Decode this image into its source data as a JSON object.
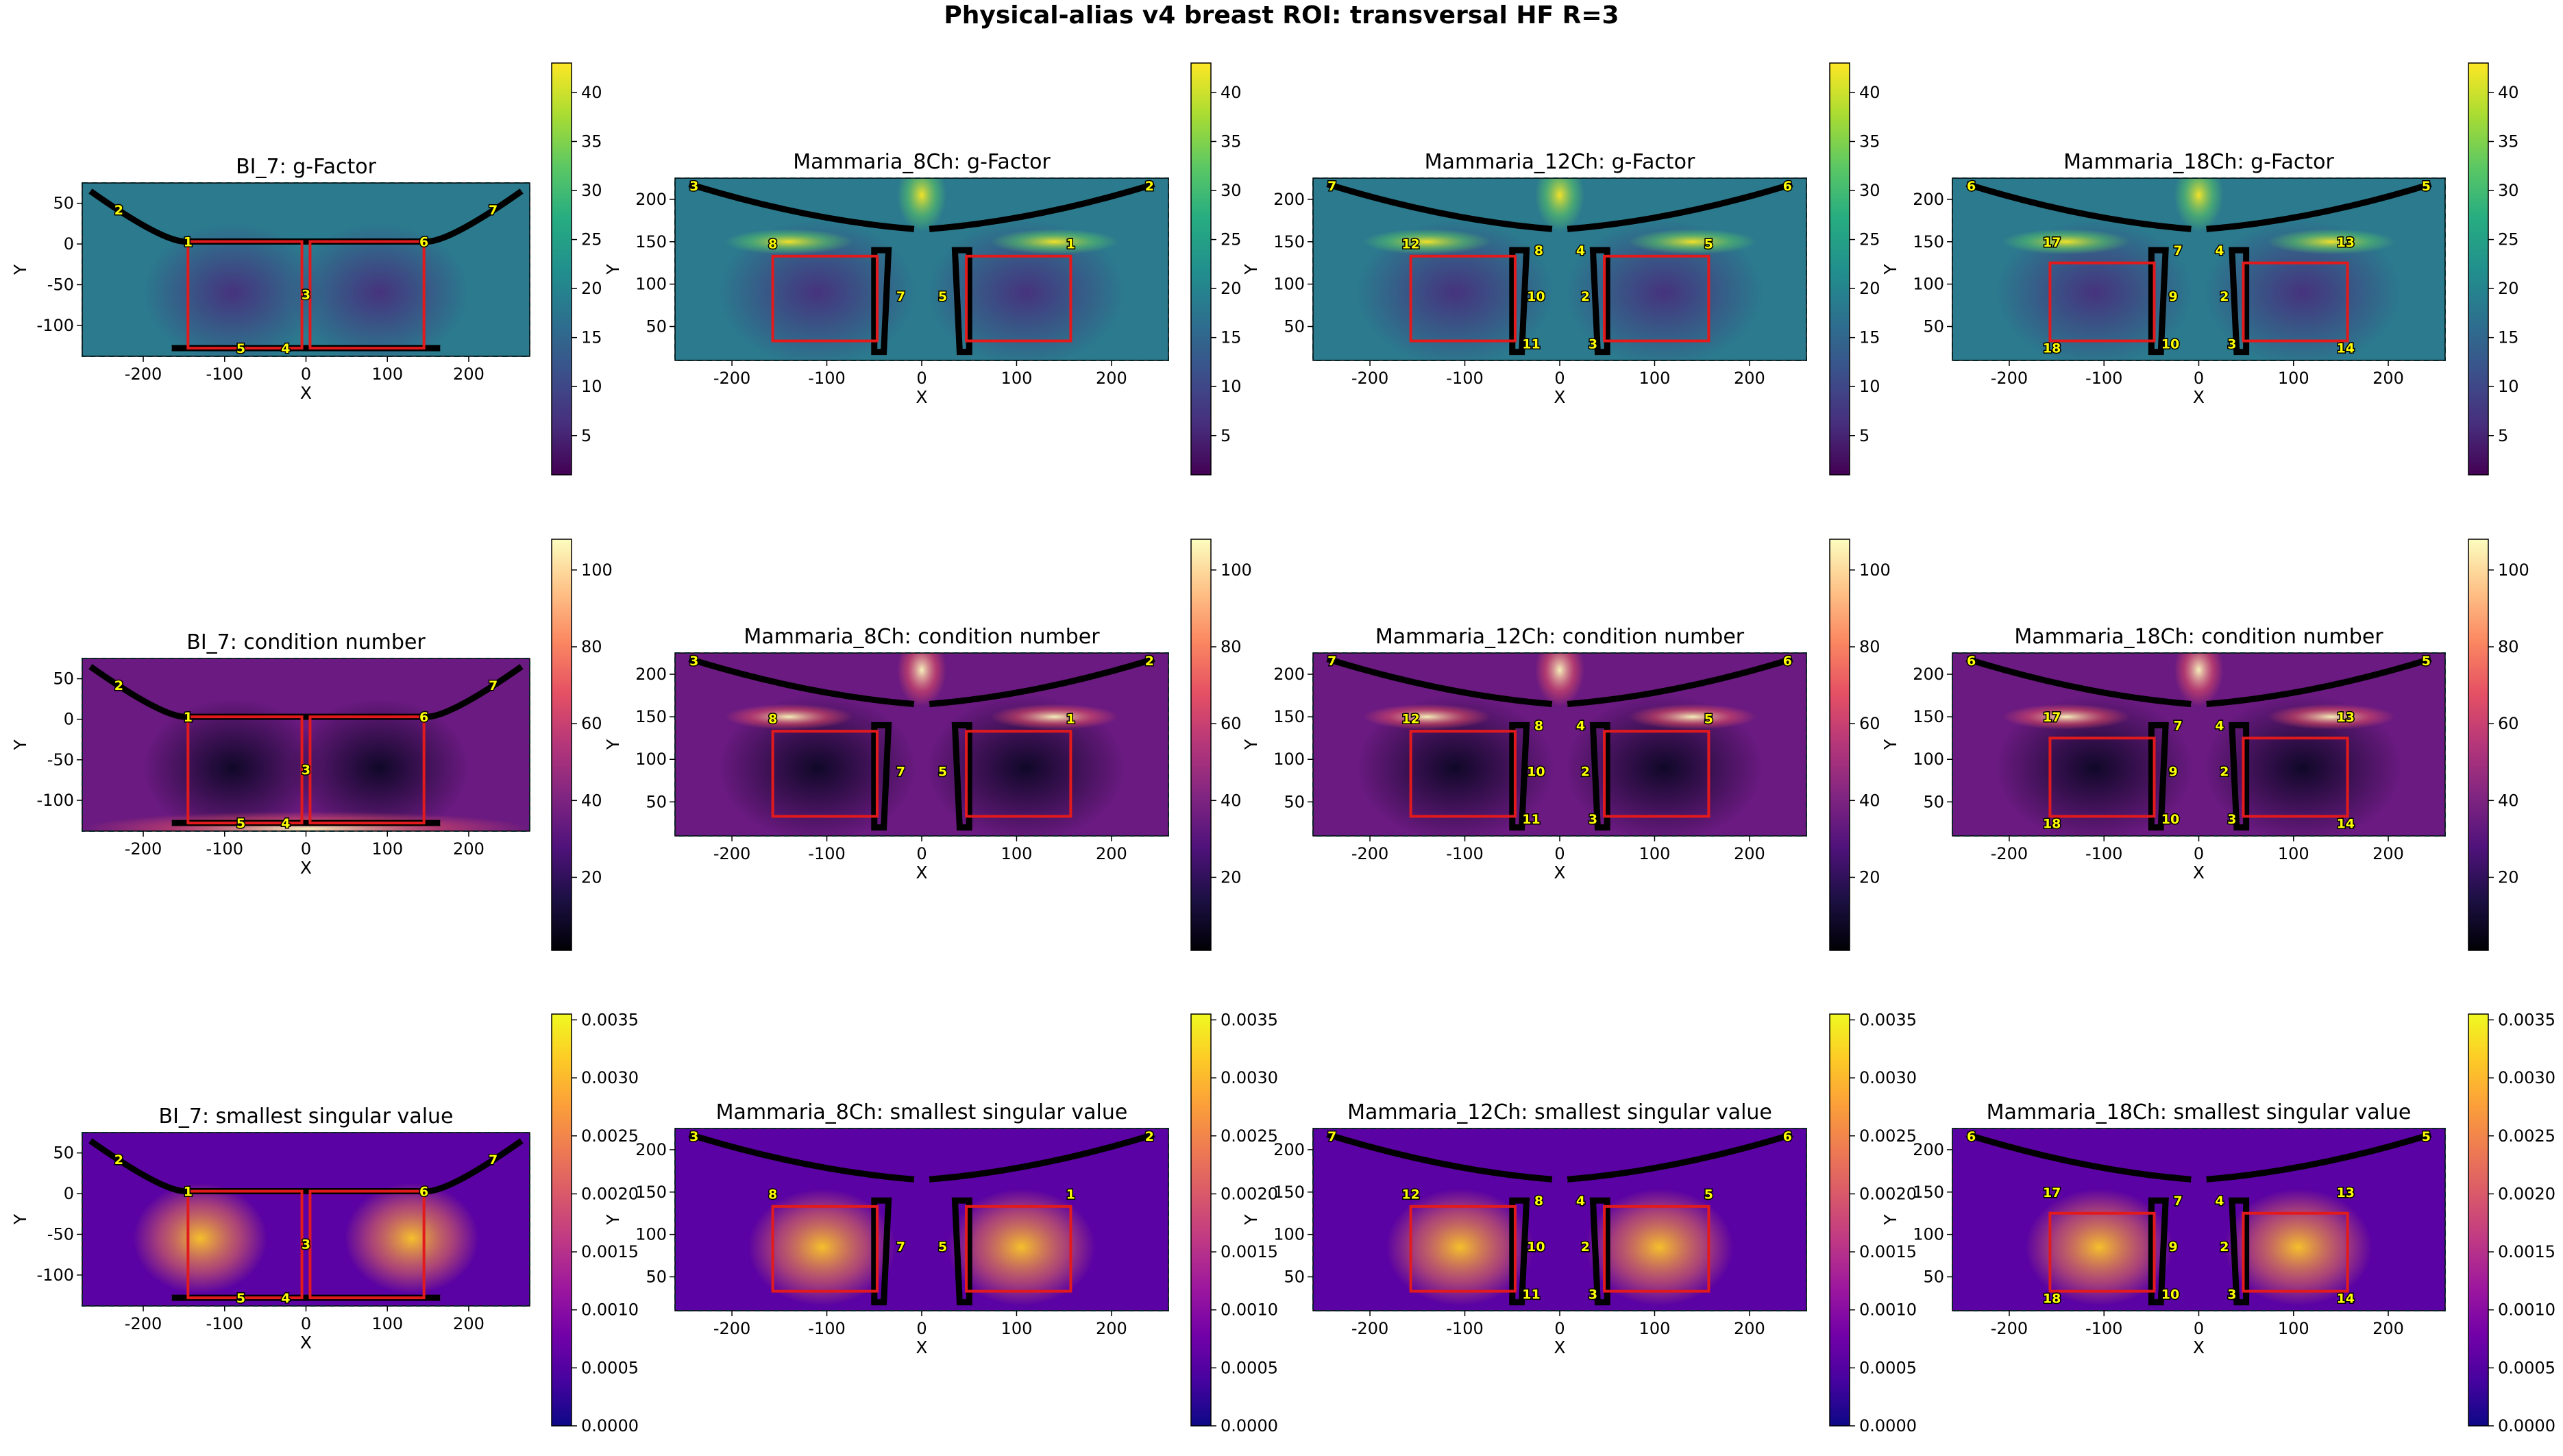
{
  "figure_title": "Physical-alias v4 breast ROI: transversal HF R=3",
  "colormaps": {
    "viridis": [
      "#440154",
      "#472f7d",
      "#3b518b",
      "#2c718e",
      "#21908d",
      "#27ad81",
      "#5cc863",
      "#aadc32",
      "#fde725"
    ],
    "magma": [
      "#000004",
      "#1c1044",
      "#4f127b",
      "#812581",
      "#b5367a",
      "#e55064",
      "#fb8761",
      "#fec287",
      "#fcfdbf"
    ],
    "plasma": [
      "#0d0887",
      "#47039f",
      "#7301a8",
      "#9c179e",
      "#bd3786",
      "#d8576b",
      "#ed7953",
      "#fb9f3a",
      "#fdca26",
      "#f0f921"
    ]
  },
  "chart_data": [
    {
      "type": "heatmap",
      "title": "BI_7: g-Factor",
      "xlabel": "X",
      "ylabel": "Y",
      "xlim": [
        -275,
        275
      ],
      "ylim": [
        -138,
        75
      ],
      "xticks": [
        "-200",
        "-100",
        "0",
        "100",
        "200"
      ],
      "yticks": [
        "50",
        "0",
        "-50",
        "-100"
      ],
      "cmap": "viridis",
      "clim": [
        1,
        43
      ],
      "colorbar_ticks": [
        "5",
        "10",
        "15",
        "20",
        "25",
        "30",
        "35",
        "40"
      ],
      "coil_labels": [
        "1",
        "2",
        "3",
        "4",
        "5",
        "6",
        "7"
      ]
    },
    {
      "type": "heatmap",
      "title": "Mammaria_8Ch: g-Factor",
      "xlabel": "X",
      "ylabel": "Y",
      "xlim": [
        -260,
        260
      ],
      "ylim": [
        10,
        225
      ],
      "xticks": [
        "-200",
        "-100",
        "0",
        "100",
        "200"
      ],
      "yticks": [
        "200",
        "150",
        "100",
        "50"
      ],
      "cmap": "viridis",
      "clim": [
        1,
        43
      ],
      "colorbar_ticks": [
        "5",
        "10",
        "15",
        "20",
        "25",
        "30",
        "35",
        "40"
      ],
      "coil_labels": [
        "1",
        "2",
        "3",
        "5",
        "7",
        "8"
      ]
    },
    {
      "type": "heatmap",
      "title": "Mammaria_12Ch: g-Factor",
      "xlabel": "X",
      "ylabel": "Y",
      "xlim": [
        -260,
        260
      ],
      "ylim": [
        10,
        225
      ],
      "xticks": [
        "-200",
        "-100",
        "0",
        "100",
        "200"
      ],
      "yticks": [
        "200",
        "150",
        "100",
        "50"
      ],
      "cmap": "viridis",
      "clim": [
        1,
        43
      ],
      "colorbar_ticks": [
        "5",
        "10",
        "15",
        "20",
        "25",
        "30",
        "35",
        "40"
      ],
      "coil_labels": [
        "2",
        "3",
        "4",
        "5",
        "6",
        "7",
        "8",
        "10",
        "11",
        "12"
      ]
    },
    {
      "type": "heatmap",
      "title": "Mammaria_18Ch: g-Factor",
      "xlabel": "X",
      "ylabel": "Y",
      "xlim": [
        -260,
        260
      ],
      "ylim": [
        10,
        225
      ],
      "xticks": [
        "-200",
        "-100",
        "0",
        "100",
        "200"
      ],
      "yticks": [
        "200",
        "150",
        "100",
        "50"
      ],
      "cmap": "viridis",
      "clim": [
        1,
        43
      ],
      "colorbar_ticks": [
        "5",
        "10",
        "15",
        "20",
        "25",
        "30",
        "35",
        "40"
      ],
      "coil_labels": [
        "2",
        "3",
        "4",
        "5",
        "6",
        "7",
        "9",
        "10",
        "13",
        "14",
        "17",
        "18"
      ]
    },
    {
      "type": "heatmap",
      "title": "BI_7: condition number",
      "xlabel": "X",
      "ylabel": "Y",
      "xlim": [
        -275,
        275
      ],
      "ylim": [
        -138,
        75
      ],
      "xticks": [
        "-200",
        "-100",
        "0",
        "100",
        "200"
      ],
      "yticks": [
        "50",
        "0",
        "-50",
        "-100"
      ],
      "cmap": "magma",
      "clim": [
        1,
        108
      ],
      "colorbar_ticks": [
        "20",
        "40",
        "60",
        "80",
        "100"
      ],
      "coil_labels": [
        "1",
        "2",
        "3",
        "4",
        "5",
        "6",
        "7"
      ]
    },
    {
      "type": "heatmap",
      "title": "Mammaria_8Ch: condition number",
      "xlabel": "X",
      "ylabel": "Y",
      "xlim": [
        -260,
        260
      ],
      "ylim": [
        10,
        225
      ],
      "xticks": [
        "-200",
        "-100",
        "0",
        "100",
        "200"
      ],
      "yticks": [
        "200",
        "150",
        "100",
        "50"
      ],
      "cmap": "magma",
      "clim": [
        1,
        108
      ],
      "colorbar_ticks": [
        "20",
        "40",
        "60",
        "80",
        "100"
      ],
      "coil_labels": [
        "1",
        "2",
        "3",
        "5",
        "7",
        "8"
      ]
    },
    {
      "type": "heatmap",
      "title": "Mammaria_12Ch: condition number",
      "xlabel": "X",
      "ylabel": "Y",
      "xlim": [
        -260,
        260
      ],
      "ylim": [
        10,
        225
      ],
      "xticks": [
        "-200",
        "-100",
        "0",
        "100",
        "200"
      ],
      "yticks": [
        "200",
        "150",
        "100",
        "50"
      ],
      "cmap": "magma",
      "clim": [
        1,
        108
      ],
      "colorbar_ticks": [
        "20",
        "40",
        "60",
        "80",
        "100"
      ],
      "coil_labels": [
        "2",
        "3",
        "4",
        "5",
        "6",
        "7",
        "8",
        "10",
        "11",
        "12"
      ]
    },
    {
      "type": "heatmap",
      "title": "Mammaria_18Ch: condition number",
      "xlabel": "X",
      "ylabel": "Y",
      "xlim": [
        -260,
        260
      ],
      "ylim": [
        10,
        225
      ],
      "xticks": [
        "-200",
        "-100",
        "0",
        "100",
        "200"
      ],
      "yticks": [
        "200",
        "150",
        "100",
        "50"
      ],
      "cmap": "magma",
      "clim": [
        1,
        108
      ],
      "colorbar_ticks": [
        "20",
        "40",
        "60",
        "80",
        "100"
      ],
      "coil_labels": [
        "2",
        "3",
        "4",
        "5",
        "6",
        "7",
        "9",
        "10",
        "13",
        "14",
        "17",
        "18"
      ]
    },
    {
      "type": "heatmap",
      "title": "BI_7: smallest singular value",
      "xlabel": "X",
      "ylabel": "Y",
      "xlim": [
        -275,
        275
      ],
      "ylim": [
        -138,
        75
      ],
      "xticks": [
        "-200",
        "-100",
        "0",
        "100",
        "200"
      ],
      "yticks": [
        "50",
        "0",
        "-50",
        "-100"
      ],
      "cmap": "plasma",
      "clim": [
        0,
        0.00355
      ],
      "colorbar_ticks": [
        "0.0000",
        "0.0005",
        "0.0010",
        "0.0015",
        "0.0020",
        "0.0025",
        "0.0030",
        "0.0035"
      ],
      "coil_labels": [
        "1",
        "2",
        "3",
        "4",
        "5",
        "6",
        "7"
      ]
    },
    {
      "type": "heatmap",
      "title": "Mammaria_8Ch: smallest singular value",
      "xlabel": "X",
      "ylabel": "Y",
      "xlim": [
        -260,
        260
      ],
      "ylim": [
        10,
        225
      ],
      "xticks": [
        "-200",
        "-100",
        "0",
        "100",
        "200"
      ],
      "yticks": [
        "200",
        "150",
        "100",
        "50"
      ],
      "cmap": "plasma",
      "clim": [
        0,
        0.00355
      ],
      "colorbar_ticks": [
        "0.0000",
        "0.0005",
        "0.0010",
        "0.0015",
        "0.0020",
        "0.0025",
        "0.0030",
        "0.0035"
      ],
      "coil_labels": [
        "1",
        "2",
        "3",
        "5",
        "7",
        "8"
      ]
    },
    {
      "type": "heatmap",
      "title": "Mammaria_12Ch: smallest singular value",
      "xlabel": "X",
      "ylabel": "Y",
      "xlim": [
        -260,
        260
      ],
      "ylim": [
        10,
        225
      ],
      "xticks": [
        "-200",
        "-100",
        "0",
        "100",
        "200"
      ],
      "yticks": [
        "200",
        "150",
        "100",
        "50"
      ],
      "cmap": "plasma",
      "clim": [
        0,
        0.00355
      ],
      "colorbar_ticks": [
        "0.0000",
        "0.0005",
        "0.0010",
        "0.0015",
        "0.0020",
        "0.0025",
        "0.0030",
        "0.0035"
      ],
      "coil_labels": [
        "2",
        "3",
        "4",
        "5",
        "6",
        "7",
        "8",
        "10",
        "11",
        "12"
      ]
    },
    {
      "type": "heatmap",
      "title": "Mammaria_18Ch: smallest singular value",
      "xlabel": "X",
      "ylabel": "Y",
      "xlim": [
        -260,
        260
      ],
      "ylim": [
        10,
        225
      ],
      "xticks": [
        "-200",
        "-100",
        "0",
        "100",
        "200"
      ],
      "yticks": [
        "200",
        "150",
        "100",
        "50"
      ],
      "cmap": "plasma",
      "clim": [
        0,
        0.00355
      ],
      "colorbar_ticks": [
        "0.0000",
        "0.0005",
        "0.0010",
        "0.0015",
        "0.0020",
        "0.0025",
        "0.0030",
        "0.0035"
      ],
      "coil_labels": [
        "2",
        "3",
        "4",
        "5",
        "6",
        "7",
        "9",
        "10",
        "13",
        "14",
        "17",
        "18"
      ]
    }
  ]
}
